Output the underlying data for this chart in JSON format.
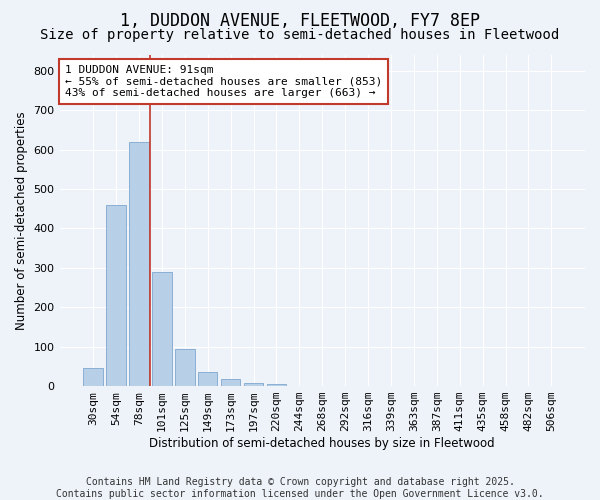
{
  "title": "1, DUDDON AVENUE, FLEETWOOD, FY7 8EP",
  "subtitle": "Size of property relative to semi-detached houses in Fleetwood",
  "xlabel": "Distribution of semi-detached houses by size in Fleetwood",
  "ylabel": "Number of semi-detached properties",
  "categories": [
    "30sqm",
    "54sqm",
    "78sqm",
    "101sqm",
    "125sqm",
    "149sqm",
    "173sqm",
    "197sqm",
    "220sqm",
    "244sqm",
    "268sqm",
    "292sqm",
    "316sqm",
    "339sqm",
    "363sqm",
    "387sqm",
    "411sqm",
    "435sqm",
    "458sqm",
    "482sqm",
    "506sqm"
  ],
  "values": [
    45,
    460,
    620,
    290,
    93,
    35,
    17,
    8,
    5,
    0,
    0,
    0,
    0,
    0,
    0,
    0,
    0,
    0,
    0,
    0,
    0
  ],
  "bar_color": "#b8cfe8",
  "bar_edge_color": "#8aafd4",
  "vline_color": "#c0392b",
  "vline_x_index": 2.5,
  "annotation_text": "1 DUDDON AVENUE: 91sqm\n← 55% of semi-detached houses are smaller (853)\n43% of semi-detached houses are larger (663) →",
  "annotation_box_color": "#ffffff",
  "annotation_box_edge_color": "#c0392b",
  "ylim": [
    0,
    840
  ],
  "yticks": [
    0,
    100,
    200,
    300,
    400,
    500,
    600,
    700,
    800
  ],
  "footer": "Contains HM Land Registry data © Crown copyright and database right 2025.\nContains public sector information licensed under the Open Government Licence v3.0.",
  "bg_color": "#eef2f9",
  "plot_bg_color": "#eef2f9",
  "grid_color": "#ffffff",
  "title_fontsize": 12,
  "subtitle_fontsize": 10,
  "axis_label_fontsize": 8.5,
  "tick_fontsize": 8,
  "annotation_fontsize": 8,
  "footer_fontsize": 7
}
